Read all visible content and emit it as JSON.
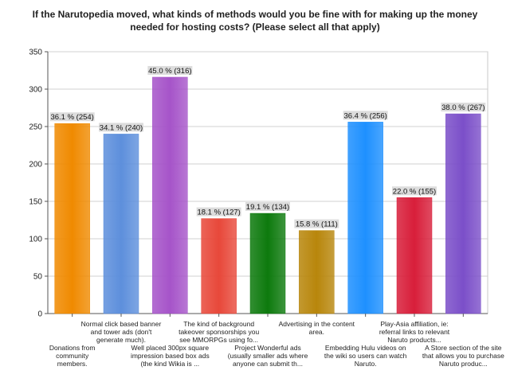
{
  "chart_data": {
    "type": "bar",
    "title": "If the Narutopedia moved, what kinds of methods would you be fine with for making up the money needed for hosting costs? (Please select all that apply)",
    "xlabel": "",
    "ylabel": "",
    "ylim": [
      0,
      350
    ],
    "yticks": [
      0,
      50,
      100,
      150,
      200,
      250,
      300,
      350
    ],
    "grid": true,
    "categories": [
      "Donations from community members.",
      "Normal click based banner and tower ads (don't generate much).",
      "Well placed 300px square impression based box ads (the kind Wikia is ...",
      "The kind of background takeover sponsorships you see MMORPGs using fo...",
      "Project Wonderful ads (usually smaller ads where anyone can submit th...",
      "Advertising in the content area.",
      "Embedding Hulu videos on the wiki so users can watch Naruto.",
      "Play-Asia affiliation, ie: referral links to relevant Naruto products...",
      "A Store section of the site that allows you to purchase Naruto produc..."
    ],
    "values": [
      254,
      240,
      316,
      127,
      134,
      111,
      256,
      155,
      267
    ],
    "data_labels": [
      "36.1 % (254)",
      "34.1 % (240)",
      "45.0 % (316)",
      "18.1 % (127)",
      "19.1 % (134)",
      "15.8 % (111)",
      "36.4 % (256)",
      "22.0 % (155)",
      "38.0 % (267)"
    ],
    "colors": [
      "#f08a00",
      "#5d8fdc",
      "#a654c9",
      "#e8483a",
      "#0d7a0d",
      "#b8860b",
      "#1e90ff",
      "#d81e3a",
      "#7b4fc9"
    ]
  }
}
